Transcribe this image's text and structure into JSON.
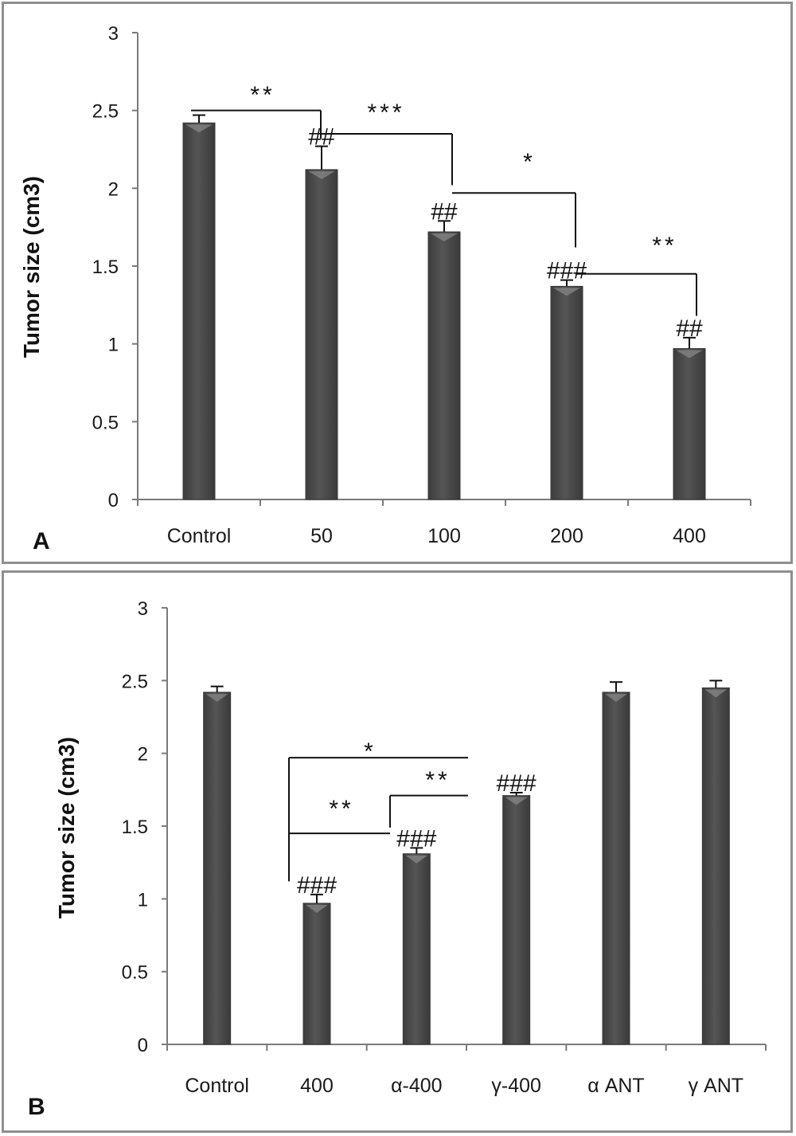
{
  "colors": {
    "bar": "#555555",
    "bar_edge": "#3a3a3a",
    "axis": "#7a7a7a",
    "annot": "#111111"
  },
  "chart_data": [
    {
      "type": "bar",
      "panel_label": "A",
      "ylabel": "Tumor size (cm3)",
      "ylim": [
        0,
        3
      ],
      "yticks": [
        0,
        0.5,
        1,
        1.5,
        2,
        2.5,
        3
      ],
      "ytick_labels": [
        "0",
        "0.5",
        "1",
        "1.5",
        "2",
        "2.5",
        "3"
      ],
      "categories": [
        "Control",
        "50",
        "100",
        "200",
        "400"
      ],
      "values": [
        2.42,
        2.12,
        1.72,
        1.37,
        0.97
      ],
      "errors": [
        0.05,
        0.15,
        0.07,
        0.04,
        0.07
      ],
      "hash_marks": [
        "",
        "##",
        "##",
        "###",
        "##"
      ],
      "significance": [
        {
          "from": 0,
          "to": 1,
          "label": "**"
        },
        {
          "from": 1,
          "to": 2,
          "label": "***"
        },
        {
          "from": 2,
          "to": 3,
          "label": "*"
        },
        {
          "from": 3,
          "to": 4,
          "label": "**"
        }
      ],
      "grid": false,
      "legend": false
    },
    {
      "type": "bar",
      "panel_label": "B",
      "ylabel": "Tumor size (cm3)",
      "ylim": [
        0,
        3
      ],
      "yticks": [
        0,
        0.5,
        1,
        1.5,
        2,
        2.5,
        3
      ],
      "ytick_labels": [
        "0",
        "0.5",
        "1",
        "1.5",
        "2",
        "2.5",
        "3"
      ],
      "categories": [
        "Control",
        "400",
        "α-400",
        "γ-400",
        "α ANT",
        "γ ANT"
      ],
      "values": [
        2.42,
        0.97,
        1.31,
        1.71,
        2.42,
        2.45
      ],
      "errors": [
        0.04,
        0.06,
        0.04,
        0.02,
        0.07,
        0.05
      ],
      "hash_marks": [
        "",
        "###",
        "###",
        "###",
        "",
        ""
      ],
      "significance": [
        {
          "from": 1,
          "to": 3,
          "label": "*"
        },
        {
          "from": 2,
          "to": 3,
          "label": "**"
        },
        {
          "from": 1,
          "to": 2,
          "label": "**"
        }
      ],
      "grid": false,
      "legend": false
    }
  ]
}
